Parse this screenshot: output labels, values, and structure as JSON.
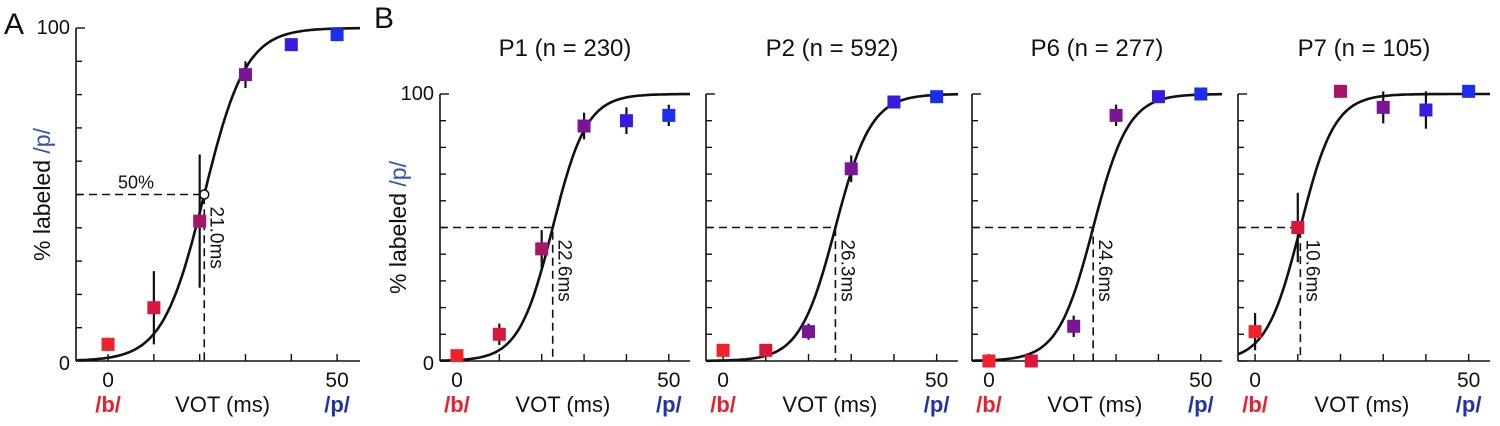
{
  "figure": {
    "panel_labels": [
      "A",
      "B"
    ],
    "colors": {
      "b_color": "#e8202a",
      "p_color": "#2233aa",
      "ylabel_p_color": "#3355aa"
    }
  },
  "chart_data": [
    {
      "id": "A",
      "type": "scatter",
      "title": "",
      "xlabel": "VOT (ms)",
      "ylabel_prefix": "% labeled ",
      "ylabel_highlight": "/p/",
      "b_label": "/b/",
      "p_label": "/p/",
      "xlim": [
        -7,
        55
      ],
      "ylim": [
        0,
        100
      ],
      "xticks": [
        0,
        50
      ],
      "xtick_labels": [
        "0",
        "50"
      ],
      "yticks": [
        0,
        100
      ],
      "ytick_labels": [
        "0",
        "100"
      ],
      "sigmoid": {
        "x50": 21.0,
        "k": 0.22
      },
      "boundary_label": "21.0ms",
      "fifty_label": "50%",
      "show_fifty_marker": true,
      "points": [
        {
          "x": 0,
          "y": 5,
          "err": 2,
          "color": "#ee2228"
        },
        {
          "x": 10,
          "y": 16,
          "err": 11,
          "color": "#d8183a"
        },
        {
          "x": 20,
          "y": 42,
          "err": 20,
          "color": "#a81668"
        },
        {
          "x": 30,
          "y": 86,
          "err": 4,
          "color": "#7a1695"
        },
        {
          "x": 40,
          "y": 95,
          "err": 0,
          "color": "#3a1ae2"
        },
        {
          "x": 50,
          "y": 98,
          "err": 0,
          "color": "#1a2ef2"
        }
      ]
    },
    {
      "id": "P1",
      "type": "scatter",
      "title": "P1 (n = 230)",
      "xlabel": "VOT (ms)",
      "ylabel_prefix": "% labeled ",
      "ylabel_highlight": "/p/",
      "b_label": "/b/",
      "p_label": "/p/",
      "xlim": [
        -4,
        55
      ],
      "ylim": [
        0,
        100
      ],
      "xticks": [
        0,
        50
      ],
      "xtick_labels": [
        "0",
        "50"
      ],
      "yticks": [
        0,
        100
      ],
      "ytick_labels": [
        "0",
        "100"
      ],
      "sigmoid": {
        "x50": 22.6,
        "k": 0.25
      },
      "boundary_label": "22.6ms",
      "points": [
        {
          "x": 0,
          "y": 2,
          "err": 0,
          "color": "#ee2228"
        },
        {
          "x": 10,
          "y": 10,
          "err": 4,
          "color": "#d8183a"
        },
        {
          "x": 20,
          "y": 42,
          "err": 7,
          "color": "#a81668"
        },
        {
          "x": 30,
          "y": 88,
          "err": 5,
          "color": "#7a1695"
        },
        {
          "x": 40,
          "y": 90,
          "err": 5,
          "color": "#3a1ae2"
        },
        {
          "x": 50,
          "y": 92,
          "err": 4,
          "color": "#1a2ef2"
        }
      ]
    },
    {
      "id": "P2",
      "type": "scatter",
      "title": "P2 (n = 592)",
      "xlabel": "VOT (ms)",
      "b_label": "/b/",
      "p_label": "/p/",
      "xlim": [
        -4,
        55
      ],
      "ylim": [
        0,
        100
      ],
      "xticks": [
        0,
        50
      ],
      "xtick_labels": [
        "0",
        "50"
      ],
      "yticks": [
        0,
        100
      ],
      "sigmoid": {
        "x50": 26.3,
        "k": 0.24
      },
      "boundary_label": "26.3ms",
      "points": [
        {
          "x": 0,
          "y": 4,
          "err": 0,
          "color": "#ee2228"
        },
        {
          "x": 10,
          "y": 4,
          "err": 0,
          "color": "#d8183a"
        },
        {
          "x": 20,
          "y": 11,
          "err": 3,
          "color": "#7a1695"
        },
        {
          "x": 30,
          "y": 72,
          "err": 5,
          "color": "#7a1695"
        },
        {
          "x": 40,
          "y": 97,
          "err": 0,
          "color": "#3a1ae2"
        },
        {
          "x": 50,
          "y": 99,
          "err": 0,
          "color": "#1a2ef2"
        }
      ]
    },
    {
      "id": "P6",
      "type": "scatter",
      "title": "P6 (n = 277)",
      "xlabel": "VOT (ms)",
      "b_label": "/b/",
      "p_label": "/p/",
      "xlim": [
        -4,
        55
      ],
      "ylim": [
        0,
        100
      ],
      "xticks": [
        0,
        50
      ],
      "xtick_labels": [
        "0",
        "50"
      ],
      "yticks": [
        0,
        100
      ],
      "sigmoid": {
        "x50": 24.6,
        "k": 0.24
      },
      "boundary_label": "24.6ms",
      "points": [
        {
          "x": 0,
          "y": 0,
          "err": 0,
          "color": "#ee2228"
        },
        {
          "x": 10,
          "y": 0,
          "err": 0,
          "color": "#d8183a"
        },
        {
          "x": 20,
          "y": 13,
          "err": 4,
          "color": "#7a1695"
        },
        {
          "x": 30,
          "y": 92,
          "err": 4,
          "color": "#7a1695"
        },
        {
          "x": 40,
          "y": 99,
          "err": 0,
          "color": "#3a1ae2"
        },
        {
          "x": 50,
          "y": 100,
          "err": 0,
          "color": "#1a2ef2"
        }
      ]
    },
    {
      "id": "P7",
      "type": "scatter",
      "title": "P7 (n = 105)",
      "xlabel": "VOT (ms)",
      "b_label": "/b/",
      "p_label": "/p/",
      "xlim": [
        -4,
        55
      ],
      "ylim": [
        0,
        100
      ],
      "xticks": [
        0,
        50
      ],
      "xtick_labels": [
        "0",
        "50"
      ],
      "yticks": [
        0,
        100
      ],
      "sigmoid": {
        "x50": 10.6,
        "k": 0.25
      },
      "boundary_label": "10.6ms",
      "points": [
        {
          "x": 0,
          "y": 11,
          "err": 7,
          "color": "#ee2228"
        },
        {
          "x": 10,
          "y": 50,
          "err": 13,
          "color": "#d8183a"
        },
        {
          "x": 20,
          "y": 101,
          "err": 0,
          "color": "#a81668"
        },
        {
          "x": 30,
          "y": 95,
          "err": 6,
          "color": "#7a1695"
        },
        {
          "x": 40,
          "y": 94,
          "err": 7,
          "color": "#3a1ae2"
        },
        {
          "x": 50,
          "y": 101,
          "err": 0,
          "color": "#1a2ef2"
        }
      ]
    }
  ]
}
